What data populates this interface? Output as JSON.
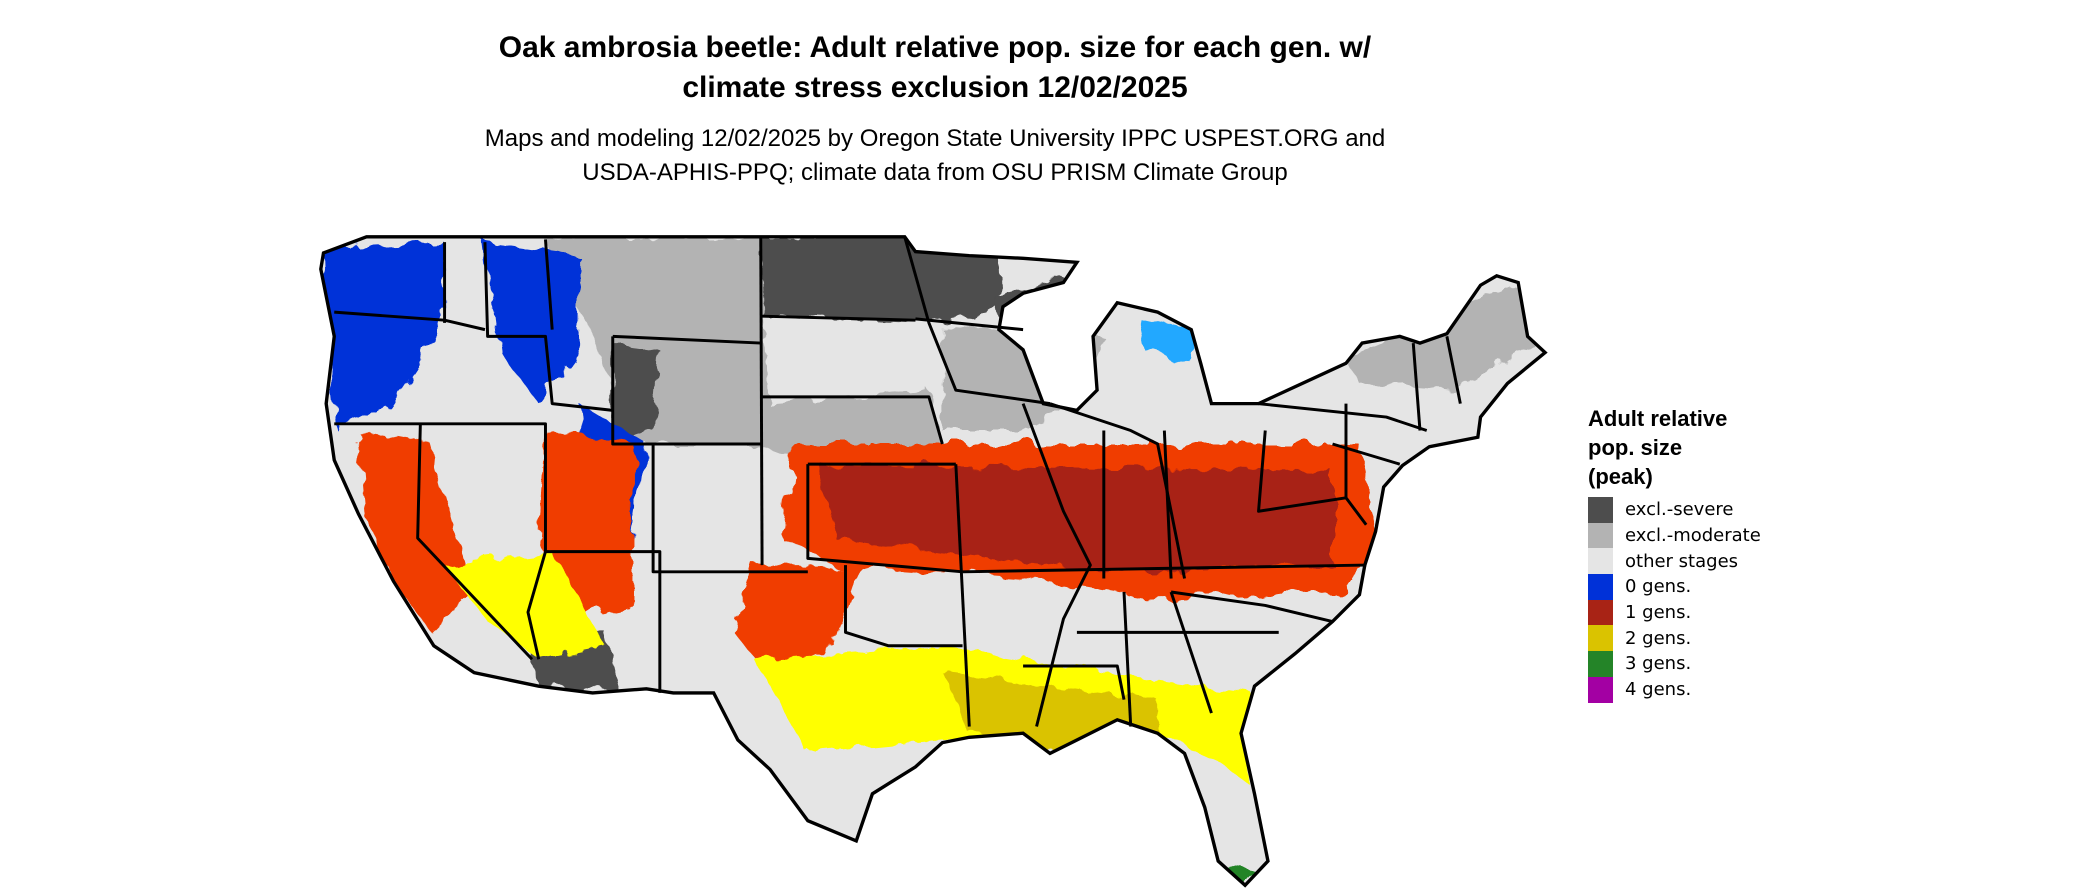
{
  "title_line1": "Oak ambrosia beetle: Adult relative pop. size for each gen. w/",
  "title_line2": "climate stress exclusion 12/02/2025",
  "subtitle_line1": "Maps and modeling 12/02/2025 by Oregon State University IPPC USPEST.ORG and",
  "subtitle_line2": "USDA-APHIS-PPQ; climate data from OSU PRISM Climate Group",
  "legend": {
    "title_lines": [
      "Adult relative",
      "pop. size",
      "(peak)"
    ],
    "items": [
      {
        "label": "excl.-severe",
        "color": "#4d4d4d"
      },
      {
        "label": "excl.-moderate",
        "color": "#b3b3b3"
      },
      {
        "label": "other stages",
        "color": "#e5e5e5"
      },
      {
        "label": "0 gens.",
        "color": "#0031d8"
      },
      {
        "label": "1 gens.",
        "color": "#a82315"
      },
      {
        "label": "2 gens.",
        "color": "#dac300"
      },
      {
        "label": "3 gens.",
        "color": "#248428"
      },
      {
        "label": "4 gens.",
        "color": "#a300a3"
      }
    ]
  },
  "map": {
    "accent_colors": {
      "bright_red": "#f03c00",
      "bright_yellow": "#ffff00",
      "light_blue": "#20a8ff"
    }
  }
}
